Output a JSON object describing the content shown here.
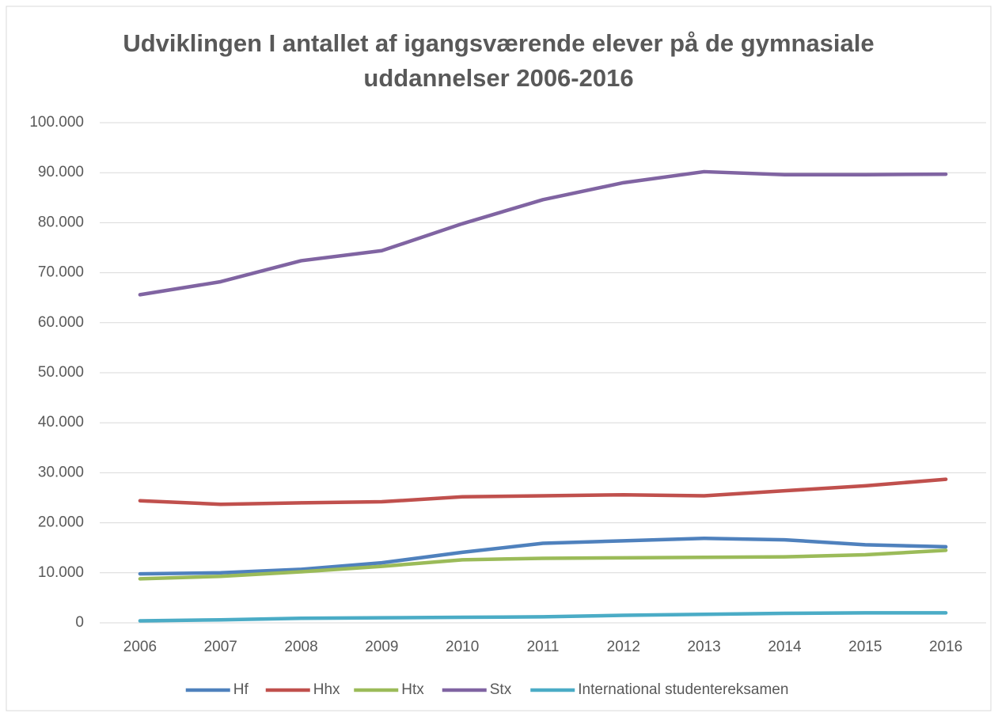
{
  "chart_data": {
    "type": "line",
    "title": [
      "Udviklingen I antallet af igangsværende elever på de gymnasiale",
      "uddannelser 2006-2016"
    ],
    "categories": [
      "2006",
      "2007",
      "2008",
      "2009",
      "2010",
      "2011",
      "2012",
      "2013",
      "2014",
      "2015",
      "2016"
    ],
    "series": [
      {
        "name": "Hf",
        "color": "#4f81bd",
        "values": [
          9800,
          10000,
          10700,
          12000,
          14100,
          15900,
          16400,
          16900,
          16600,
          15600,
          15200
        ]
      },
      {
        "name": "Hhx",
        "color": "#c0504d",
        "values": [
          24400,
          23700,
          24000,
          24200,
          25200,
          25400,
          25600,
          25400,
          26400,
          27400,
          28700
        ]
      },
      {
        "name": "Htx",
        "color": "#9bbb59",
        "values": [
          8800,
          9300,
          10200,
          11300,
          12600,
          12900,
          13000,
          13100,
          13200,
          13600,
          14500
        ]
      },
      {
        "name": "Stx",
        "color": "#8064a2",
        "values": [
          65600,
          68200,
          72400,
          74400,
          79800,
          84600,
          88000,
          90200,
          89600,
          89600,
          89700
        ]
      },
      {
        "name": "International studentereksamen",
        "color": "#4bacc6",
        "values": [
          400,
          600,
          900,
          1000,
          1100,
          1200,
          1500,
          1700,
          1900,
          2000,
          2000
        ]
      }
    ],
    "ylim": [
      0,
      100000
    ],
    "yticks": [
      0,
      {
        "value": 10000,
        "label": "10.000"
      },
      {
        "value": 20000,
        "label": "20.000"
      },
      {
        "value": 30000,
        "label": "30.000"
      },
      {
        "value": 40000,
        "label": "40.000"
      },
      {
        "value": 50000,
        "label": "50.000"
      },
      {
        "value": 60000,
        "label": "60.000"
      },
      {
        "value": 70000,
        "label": "70.000"
      },
      {
        "value": 80000,
        "label": "80.000"
      },
      {
        "value": 90000,
        "label": "90.000"
      },
      {
        "value": 100000,
        "label": "100.000"
      }
    ],
    "grid": true,
    "legend": "bottom"
  }
}
